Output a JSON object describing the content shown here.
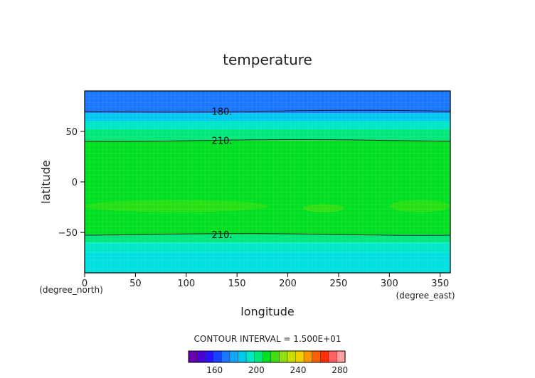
{
  "chart_data": {
    "type": "heatmap",
    "title": "temperature",
    "xlabel": "longitude",
    "ylabel": "latitude",
    "x_unit": "(degree_east)",
    "y_unit": "(degree_north)",
    "xlim": [
      0,
      360
    ],
    "ylim": [
      -90,
      90
    ],
    "x_ticks": [
      0,
      50,
      100,
      150,
      200,
      250,
      300,
      350
    ],
    "y_ticks": [
      -50,
      0,
      50
    ],
    "contour_interval_text": "CONTOUR INTERVAL = 1.500E+01",
    "contours": [
      {
        "label": "180.",
        "lat": 70
      },
      {
        "label": "210.",
        "lat": 41
      },
      {
        "label": "210.",
        "lat": -52
      }
    ],
    "bands": [
      {
        "lat_from": 68,
        "lat_to": 90,
        "color": "#1a78ff"
      },
      {
        "lat_from": 60,
        "lat_to": 68,
        "color": "#00c8f0"
      },
      {
        "lat_from": 52,
        "lat_to": 60,
        "color": "#00e8c8"
      },
      {
        "lat_from": 41,
        "lat_to": 52,
        "color": "#00e87a"
      },
      {
        "lat_from": -52,
        "lat_to": 41,
        "color": "#00e020"
      },
      {
        "lat_from": -60,
        "lat_to": -52,
        "color": "#00e87a"
      },
      {
        "lat_from": -70,
        "lat_to": -60,
        "color": "#00e8c8"
      },
      {
        "lat_from": -90,
        "lat_to": -70,
        "color": "#00e0e0"
      }
    ],
    "warm_patches": [
      {
        "lon_from": 0,
        "lon_to": 180,
        "lat_from": -30,
        "lat_to": -18,
        "color": "#33e010"
      },
      {
        "lon_from": 215,
        "lon_to": 255,
        "lat_from": -30,
        "lat_to": -22,
        "color": "#40e010"
      },
      {
        "lon_from": 300,
        "lon_to": 360,
        "lat_from": -30,
        "lat_to": -18,
        "color": "#33e010"
      }
    ],
    "colorbar": {
      "colors": [
        "#6a00b0",
        "#4b00d8",
        "#2a10ff",
        "#1840ff",
        "#1a78ff",
        "#10a8ff",
        "#00c8f0",
        "#00e8c8",
        "#00e87a",
        "#00e020",
        "#40e010",
        "#90e010",
        "#c8e000",
        "#f0d000",
        "#ff9800",
        "#ff6000",
        "#ff3000",
        "#ff6060",
        "#ffa0a0"
      ],
      "tick_labels": [
        "160",
        "200",
        "240",
        "280"
      ],
      "tick_values": [
        160,
        200,
        240,
        280
      ],
      "vmin": 135,
      "vmax": 285
    }
  }
}
